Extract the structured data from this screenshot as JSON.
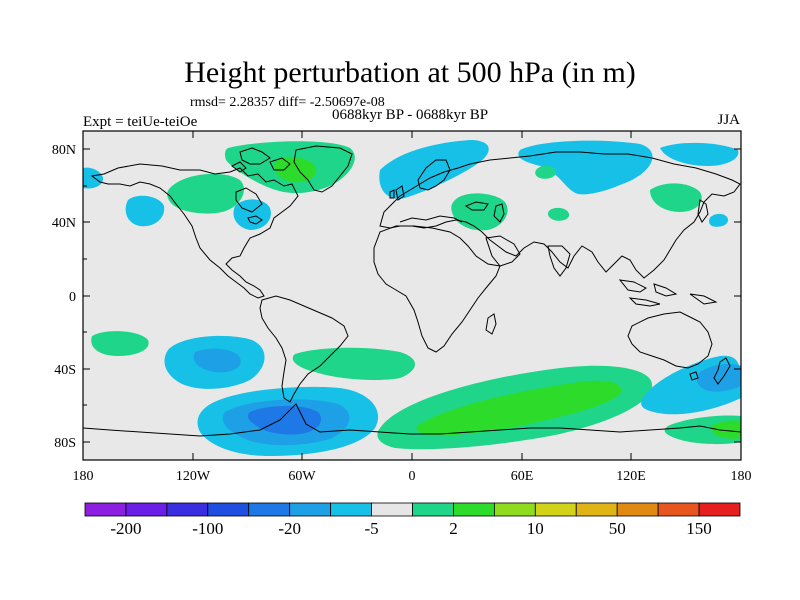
{
  "title": "Height perturbation at 500 hPa (in m)",
  "stats_text": "rmsd= 2.28357 diff= -2.50697e-08",
  "left_label": "Expt = teiUe-teiOe",
  "center_label": "0688kyr BP - 0688kyr BP",
  "season_label": "JJA",
  "lat_labels": [
    "80N",
    "40N",
    "0",
    "40S",
    "80S"
  ],
  "lon_labels": [
    "180",
    "120W",
    "60W",
    "0",
    "60E",
    "120E",
    "180"
  ],
  "colorbar": {
    "colors": [
      "#8c1fe0",
      "#6a1ee6",
      "#3a2ee0",
      "#1e4fe0",
      "#1e78e6",
      "#1ea0e6",
      "#17c0e6",
      "#e6e6e6",
      "#1fd58a",
      "#2ddc2a",
      "#8fdc1e",
      "#d2d218",
      "#e0b414",
      "#e08a14",
      "#e6561e",
      "#e61e1e"
    ],
    "tick_labels": [
      "-200",
      "-100",
      "-20",
      "-5",
      "2",
      "10",
      "50",
      "150"
    ]
  },
  "colors": {
    "ocean_background": "#e8e8e8",
    "light_blue": "#17c0e6",
    "mid_blue": "#1ea0e6",
    "blue": "#1e78e6",
    "teal_green": "#1fd58a",
    "green": "#2ddc2a"
  }
}
